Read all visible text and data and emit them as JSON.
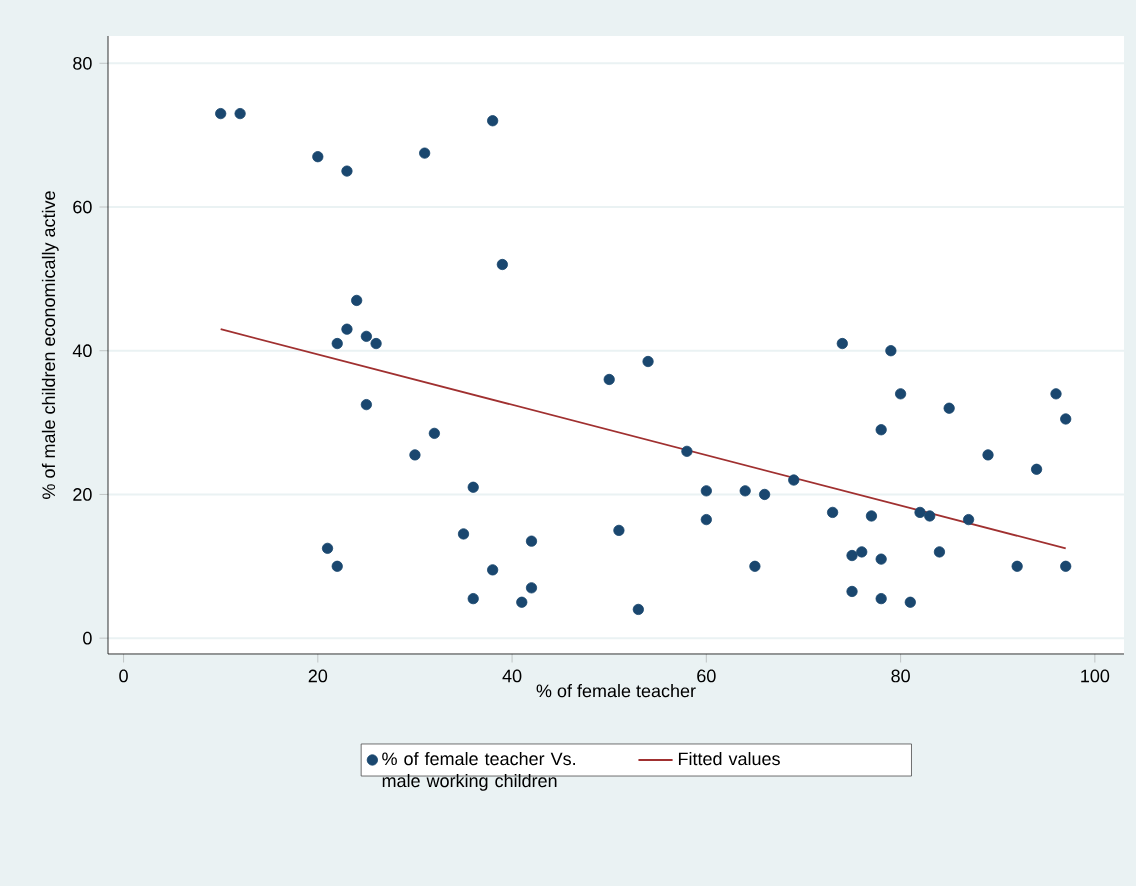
{
  "chart_data": {
    "type": "scatter",
    "xlabel": "% of female teacher",
    "ylabel": "% of male children economically active",
    "xlim": [
      -1.6,
      103
    ],
    "ylim": [
      -2.2,
      83.8
    ],
    "xticks": [
      0,
      20,
      40,
      60,
      80,
      100
    ],
    "yticks": [
      0,
      20,
      40,
      60,
      80
    ],
    "grid": "y",
    "legend": "bottom",
    "series": [
      {
        "name": "% of female teacher Vs. male working children",
        "marker": "circle",
        "color": "#1a476f",
        "x": [
          10,
          12,
          20,
          23,
          31,
          38,
          39,
          24,
          23,
          25,
          22,
          26,
          25,
          32,
          30,
          36,
          35,
          42,
          21,
          22,
          38,
          42,
          36,
          41,
          50,
          54,
          51,
          53,
          58,
          60,
          60,
          64,
          66,
          65,
          69,
          73,
          75,
          76,
          75,
          77,
          78,
          78,
          78,
          74,
          79,
          80,
          81,
          82,
          83,
          84,
          85,
          87,
          89,
          92,
          94,
          96,
          97,
          97
        ],
        "values": [
          73,
          73,
          67,
          65,
          67.5,
          72,
          52,
          47,
          43,
          42,
          41,
          41,
          32.5,
          28.5,
          25.5,
          21,
          14.5,
          13.5,
          12.5,
          10,
          9.5,
          7,
          5.5,
          5,
          36,
          38.5,
          15,
          4,
          26,
          20.5,
          16.5,
          20.5,
          20,
          10,
          22,
          17.5,
          11.5,
          12,
          6.5,
          17,
          29,
          11,
          5.5,
          41,
          40,
          34,
          5,
          17.5,
          17,
          12,
          32,
          16.5,
          25.5,
          10,
          23.5,
          34,
          30.5,
          10
        ]
      },
      {
        "name": "Fitted values",
        "type": "line",
        "marker": "none",
        "color": "#a03030",
        "x": [
          10,
          97
        ],
        "values": [
          43,
          12.5
        ]
      }
    ]
  }
}
